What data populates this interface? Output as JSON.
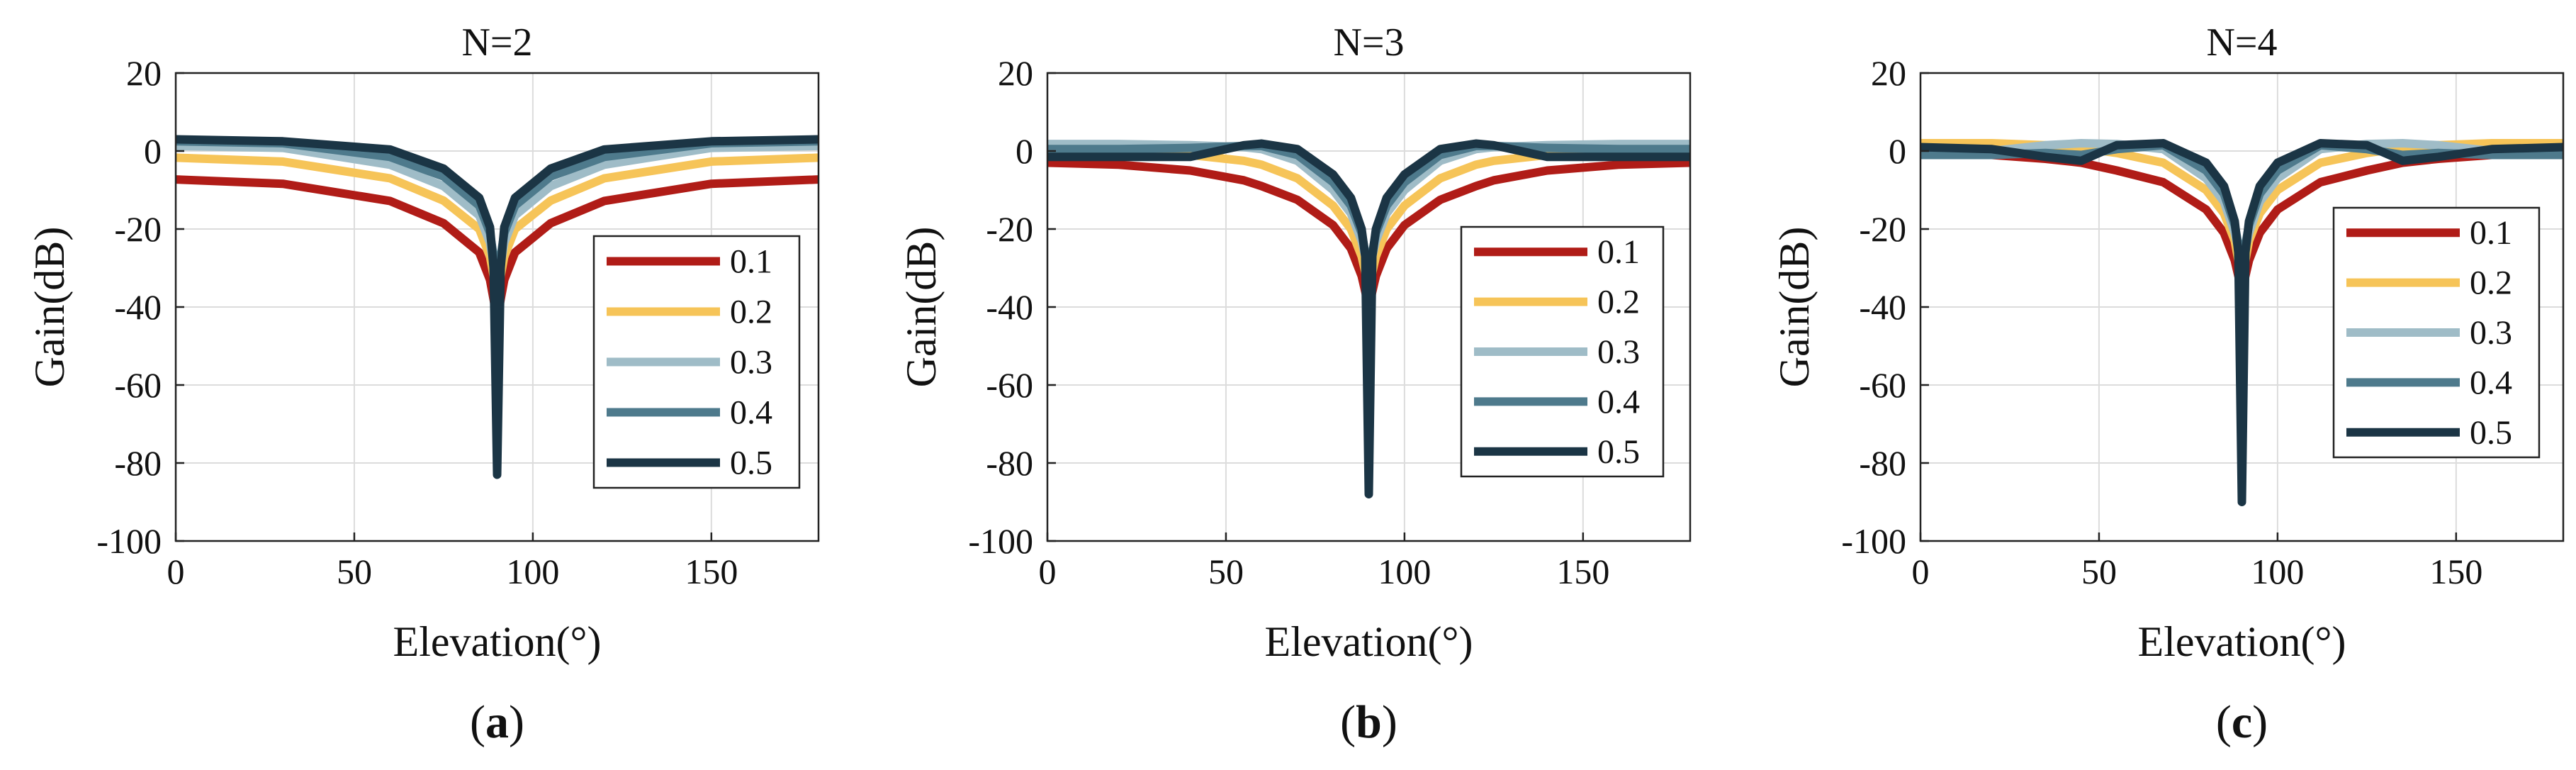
{
  "colors": {
    "s01": "#B01C17",
    "s02": "#F6C458",
    "s03": "#9FBCC7",
    "s04": "#4E7A8C",
    "s05": "#1B3545"
  },
  "chart_data": [
    {
      "type": "line",
      "title": "N=2",
      "caption_letter": "a",
      "xlabel": "Elevation(°)",
      "ylabel": "Gain(dB)",
      "xlim": [
        0,
        180
      ],
      "ylim": [
        -100,
        20
      ],
      "xticks": [
        "0",
        "50",
        "100",
        "150"
      ],
      "yticks": [
        "20",
        "0",
        "-20",
        "-40",
        "-60",
        "-80",
        "-100"
      ],
      "grid": true,
      "legend_position": "center-right",
      "x": [
        0,
        30,
        60,
        75,
        85,
        88,
        89,
        90,
        91,
        92,
        95,
        105,
        120,
        150,
        180
      ],
      "series": [
        {
          "name": "0.1",
          "values": [
            -7.3,
            -8.4,
            -12.8,
            -18.5,
            -26,
            -33,
            -38,
            -43,
            -38,
            -33,
            -26,
            -18.5,
            -12.8,
            -8.4,
            -7.3
          ]
        },
        {
          "name": "0.2",
          "values": [
            -1.7,
            -2.7,
            -7,
            -12.7,
            -20,
            -27,
            -32,
            -37,
            -32,
            -27,
            -20,
            -12.7,
            -7,
            -2.7,
            -1.7
          ]
        },
        {
          "name": "0.3",
          "values": [
            1.3,
            0.8,
            -3.5,
            -9,
            -16.5,
            -23.5,
            -29,
            -34,
            -29,
            -23.5,
            -16.5,
            -9,
            -3.5,
            0.8,
            1.3
          ]
        },
        {
          "name": "0.4",
          "values": [
            2.5,
            2,
            -1.5,
            -6.5,
            -14,
            -21,
            -27,
            -31,
            -27,
            -21,
            -14,
            -6.5,
            -1.5,
            2,
            2.5
          ]
        },
        {
          "name": "0.5",
          "values": [
            3,
            2.5,
            0.4,
            -4.5,
            -12,
            -19.5,
            -30,
            -83,
            -30,
            -19.5,
            -12,
            -4.5,
            0.4,
            2.5,
            3
          ]
        }
      ]
    },
    {
      "type": "line",
      "title": "N=3",
      "caption_letter": "b",
      "xlabel": "Elevation(°)",
      "ylabel": "Gain(dB)",
      "xlim": [
        0,
        180
      ],
      "ylim": [
        -100,
        20
      ],
      "xticks": [
        "0",
        "50",
        "100",
        "150"
      ],
      "yticks": [
        "20",
        "0",
        "-20",
        "-40",
        "-60",
        "-80",
        "-100"
      ],
      "grid": true,
      "legend_position": "center-right",
      "x": [
        0,
        20,
        40,
        55,
        60,
        70,
        80,
        85,
        88,
        89,
        90,
        91,
        92,
        95,
        100,
        110,
        120,
        125,
        140,
        160,
        180
      ],
      "series": [
        {
          "name": "0.1",
          "values": [
            -3,
            -3.5,
            -5,
            -7.5,
            -9,
            -12.5,
            -19,
            -25,
            -32,
            -36,
            -40,
            -36,
            -32,
            -25,
            -19,
            -12.5,
            -9,
            -7.5,
            -5,
            -3.5,
            -3
          ]
        },
        {
          "name": "0.2",
          "values": [
            -0.5,
            -0.6,
            -1,
            -2.5,
            -3.5,
            -7,
            -14,
            -20,
            -27,
            -31,
            -36,
            -31,
            -27,
            -20,
            -14,
            -7,
            -3.5,
            -2.5,
            -1,
            -0.6,
            -0.5
          ]
        },
        {
          "name": "0.3",
          "values": [
            1.8,
            1.8,
            1.5,
            1,
            0.5,
            -2.5,
            -10,
            -16,
            -23,
            -27,
            -32,
            -27,
            -23,
            -16,
            -10,
            -2.5,
            0.5,
            1,
            1.5,
            1.8,
            1.8
          ]
        },
        {
          "name": "0.4",
          "values": [
            0.5,
            0.5,
            0.8,
            1.3,
            1.3,
            -1,
            -8,
            -14,
            -21,
            -26,
            -30,
            -26,
            -21,
            -14,
            -8,
            -1,
            1.3,
            1.3,
            0.8,
            0.5,
            0.5
          ]
        },
        {
          "name": "0.5",
          "values": [
            -1.5,
            -1.5,
            -1.5,
            1.5,
            1.9,
            0.5,
            -6,
            -12,
            -20,
            -27,
            -88,
            -27,
            -20,
            -12,
            -6,
            0.5,
            1.9,
            1.5,
            -1.5,
            -1.5,
            -1.5
          ]
        }
      ]
    },
    {
      "type": "line",
      "title": "N=4",
      "caption_letter": "c",
      "xlabel": "Elevation(°)",
      "ylabel": "Gain(dB)",
      "xlim": [
        0,
        180
      ],
      "ylim": [
        -100,
        20
      ],
      "xticks": [
        "0",
        "50",
        "100",
        "150"
      ],
      "yticks": [
        "20",
        "0",
        "-20",
        "-40",
        "-60",
        "-80",
        "-100"
      ],
      "grid": true,
      "legend_position": "center-right",
      "x": [
        0,
        20,
        35,
        45,
        55,
        68,
        80,
        85,
        88,
        89,
        90,
        91,
        92,
        95,
        100,
        112,
        125,
        135,
        145,
        160,
        180
      ],
      "series": [
        {
          "name": "0.1",
          "values": [
            -0.5,
            -1,
            -2,
            -3,
            -5,
            -8,
            -15,
            -21,
            -28,
            -32,
            -36,
            -32,
            -28,
            -21,
            -15,
            -8,
            -5,
            -3,
            -2,
            -1,
            -0.5
          ]
        },
        {
          "name": "0.2",
          "values": [
            2,
            2,
            1.5,
            0.8,
            -0.5,
            -3,
            -10,
            -16,
            -23,
            -28,
            -32,
            -28,
            -23,
            -16,
            -10,
            -3,
            -0.5,
            0.8,
            1.5,
            2,
            2
          ]
        },
        {
          "name": "0.3",
          "values": [
            -0.5,
            0,
            1.5,
            2,
            1.8,
            0.5,
            -7,
            -13,
            -21,
            -25,
            -30,
            -25,
            -21,
            -13,
            -7,
            0.5,
            1.8,
            2,
            1.5,
            0,
            -0.5
          ]
        },
        {
          "name": "0.4",
          "values": [
            -1,
            -1,
            -0.5,
            -1,
            0.5,
            1.5,
            -5,
            -11,
            -19,
            -24,
            -28,
            -24,
            -19,
            -11,
            -5,
            1.5,
            0.5,
            -1,
            -0.5,
            -1,
            -1
          ]
        },
        {
          "name": "0.5",
          "values": [
            1,
            0.5,
            -1.5,
            -2.5,
            1.5,
            2,
            -3,
            -9,
            -18,
            -26,
            -90,
            -26,
            -18,
            -9,
            -3,
            2,
            1.5,
            -2.5,
            -1.5,
            0.5,
            1
          ]
        }
      ]
    }
  ]
}
